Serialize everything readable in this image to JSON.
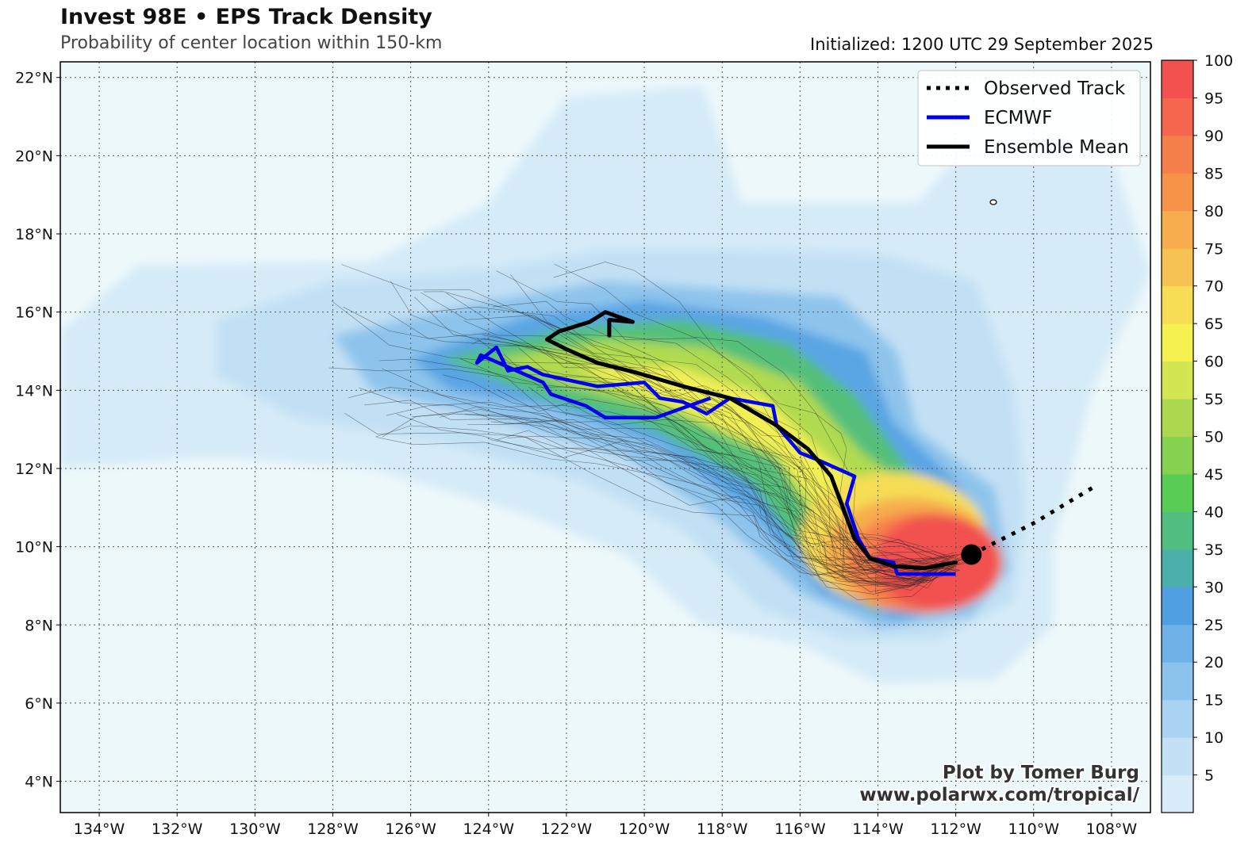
{
  "header": {
    "title": "Invest 98E • EPS Track Density",
    "subtitle": "Probability of center location within 150-km",
    "initialized": "Initialized: 1200 UTC 29 September 2025"
  },
  "credit": {
    "line1": "Plot by Tomer Burg",
    "line2": "www.polarwx.com/tropical/"
  },
  "map_data": {
    "lon_range": [
      -135,
      -107
    ],
    "lat_range": [
      3.2,
      22.4
    ],
    "lon_ticks": [
      -134,
      -132,
      -130,
      -128,
      -126,
      -124,
      -122,
      -120,
      -118,
      -116,
      -114,
      -112,
      -110,
      -108
    ],
    "lon_tick_labels": [
      "134°W",
      "132°W",
      "130°W",
      "128°W",
      "126°W",
      "124°W",
      "122°W",
      "120°W",
      "118°W",
      "116°W",
      "114°W",
      "112°W",
      "110°W",
      "108°W"
    ],
    "lat_ticks": [
      4,
      6,
      8,
      10,
      12,
      14,
      16,
      18,
      20,
      22
    ],
    "lat_tick_labels": [
      "4°N",
      "6°N",
      "8°N",
      "10°N",
      "12°N",
      "14°N",
      "16°N",
      "18°N",
      "20°N",
      "22°N"
    ],
    "grid": "dotted",
    "legend": {
      "position": "top-right",
      "entries": [
        {
          "label": "Observed Track",
          "color": "#000000",
          "style": "dotted"
        },
        {
          "label": "ECMWF",
          "color": "#0000ee",
          "style": "solid"
        },
        {
          "label": "Ensemble Mean",
          "color": "#000000",
          "style": "solid"
        }
      ]
    },
    "observed_track": [
      [
        -108.5,
        11.5
      ],
      [
        -110,
        10.6
      ],
      [
        -111.6,
        9.8
      ]
    ],
    "current_position": [
      -111.6,
      9.8
    ],
    "ensemble_mean": [
      [
        -112,
        9.6
      ],
      [
        -112.8,
        9.45
      ],
      [
        -113.6,
        9.5
      ],
      [
        -114.2,
        9.7
      ],
      [
        -114.6,
        10.2
      ],
      [
        -114.9,
        11.0
      ],
      [
        -115.2,
        11.8
      ],
      [
        -115.8,
        12.5
      ],
      [
        -116.6,
        13.1
      ],
      [
        -117.8,
        13.8
      ],
      [
        -119,
        14.1
      ],
      [
        -120.2,
        14.45
      ],
      [
        -121.2,
        14.7
      ],
      [
        -122.0,
        15.05
      ],
      [
        -122.5,
        15.3
      ],
      [
        -122.2,
        15.5
      ],
      [
        -121.4,
        15.75
      ],
      [
        -121.0,
        16.0
      ],
      [
        -120.3,
        15.75
      ],
      [
        -120.9,
        15.8
      ],
      [
        -120.9,
        15.4
      ]
    ],
    "ecmwf": [
      [
        -112,
        9.3
      ],
      [
        -113.5,
        9.3
      ],
      [
        -113.6,
        9.6
      ],
      [
        -114.2,
        9.7
      ],
      [
        -114.5,
        10.2
      ],
      [
        -114.8,
        11.1
      ],
      [
        -114.6,
        11.8
      ],
      [
        -115.5,
        12.2
      ],
      [
        -116.0,
        12.4
      ],
      [
        -116.6,
        13.1
      ],
      [
        -116.7,
        13.6
      ],
      [
        -117.8,
        13.8
      ],
      [
        -118.4,
        13.4
      ],
      [
        -119.0,
        13.7
      ],
      [
        -119.6,
        13.8
      ],
      [
        -120.0,
        14.2
      ],
      [
        -121.2,
        14.1
      ],
      [
        -122.6,
        14.4
      ],
      [
        -123.0,
        14.6
      ],
      [
        -123.5,
        14.5
      ],
      [
        -123.8,
        15.1
      ],
      [
        -124.3,
        14.7
      ],
      [
        -124.2,
        14.9
      ],
      [
        -122.6,
        14.2
      ],
      [
        -122.4,
        13.9
      ],
      [
        -121.5,
        13.6
      ],
      [
        -121.0,
        13.3
      ],
      [
        -119.7,
        13.3
      ],
      [
        -118.3,
        13.8
      ]
    ],
    "density_levels": [
      {
        "center": [
          -112.5,
          9.6
        ],
        "rx": 1.6,
        "ry": 1.2,
        "color": "#f2514f"
      },
      {
        "center": [
          -112.8,
          9.6
        ],
        "rx": 2.0,
        "ry": 1.3,
        "color": "#f57f4b"
      },
      {
        "center": [
          -113.2,
          9.8
        ],
        "rx": 2.2,
        "ry": 1.45,
        "color": "#f7ad4e"
      },
      {
        "center": [
          -113.6,
          10.2
        ],
        "rx": 2.4,
        "ry": 1.7,
        "color": "#f6dd55"
      }
    ]
  },
  "colorbar": {
    "ticks": [
      5,
      10,
      15,
      20,
      25,
      30,
      35,
      40,
      45,
      50,
      55,
      60,
      65,
      70,
      75,
      80,
      85,
      90,
      95,
      100
    ],
    "colors": [
      "#d8ebf8",
      "#c3e0f4",
      "#a9d3f0",
      "#8bc3ec",
      "#6eb2e7",
      "#4f9fe2",
      "#4aaeaa",
      "#51bd80",
      "#58cc55",
      "#86d14f",
      "#acd850",
      "#d4e552",
      "#f4f151",
      "#f6dd55",
      "#f7c254",
      "#f7ad4e",
      "#f69348",
      "#f57f4b",
      "#f4664d",
      "#f2514f"
    ]
  }
}
